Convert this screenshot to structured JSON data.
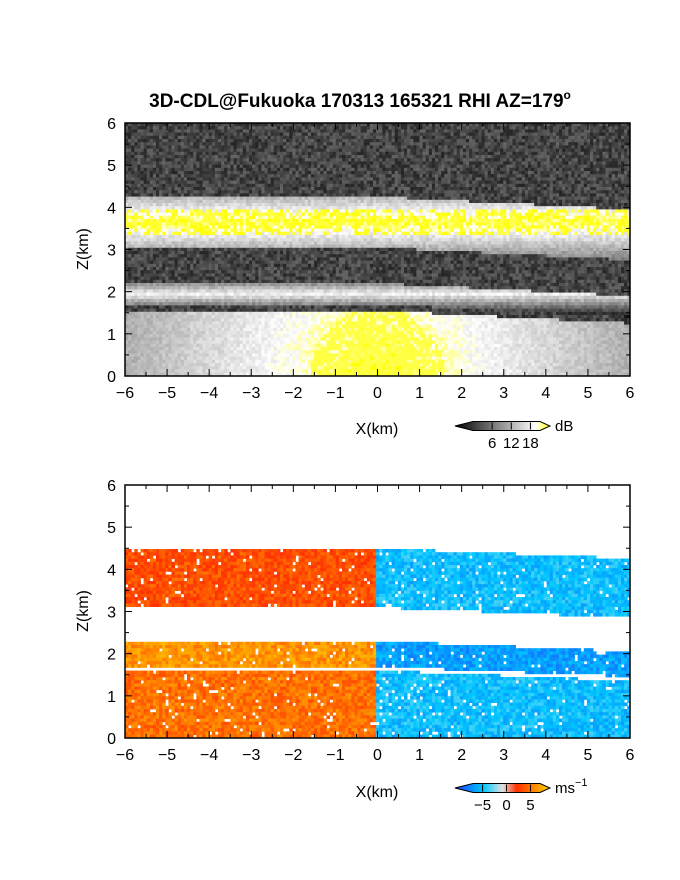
{
  "title": "3D-CDL@Fukuoka 170313 165321 RHI AZ=179",
  "title_superscript": "o",
  "chart_data": [
    {
      "type": "heatmap",
      "quantity": "backscatter intensity",
      "xlabel": "X(km)",
      "ylabel": "Z(km)",
      "xlim": [
        -6,
        6
      ],
      "ylim": [
        0,
        6
      ],
      "xticks": [
        "-6",
        "-5",
        "-4",
        "-3",
        "-2",
        "-1",
        "0",
        "1",
        "2",
        "3",
        "4",
        "5",
        "6"
      ],
      "yticks": [
        "0",
        "1",
        "2",
        "3",
        "4",
        "5",
        "6"
      ],
      "colorscale": [
        "#000000",
        "#ffffff",
        "#ffff00"
      ],
      "colorbar": {
        "ticks": [
          "6",
          "12",
          "18"
        ],
        "unit": "dB",
        "range": [
          0,
          21
        ]
      },
      "layers": [
        {
          "z_bottom": 3.05,
          "z_top": 4.25,
          "level": "bright",
          "peak_yellow": true
        },
        {
          "z_bottom": 1.7,
          "z_top": 2.2,
          "level": "medium"
        },
        {
          "z_bottom": 0.0,
          "z_top": 1.55,
          "level": "bright",
          "peak_yellow": true
        }
      ]
    },
    {
      "type": "heatmap",
      "quantity": "radial velocity",
      "xlabel": "X(km)",
      "ylabel": "Z(km)",
      "xlim": [
        -6,
        6
      ],
      "ylim": [
        0,
        6
      ],
      "xticks": [
        "-6",
        "-5",
        "-4",
        "-3",
        "-2",
        "-1",
        "0",
        "1",
        "2",
        "3",
        "4",
        "5",
        "6"
      ],
      "yticks": [
        "0",
        "1",
        "2",
        "3",
        "4",
        "5",
        "6"
      ],
      "colorscale": [
        "#1a3cff",
        "#00c8ff",
        "#ffffff",
        "#ff3000",
        "#ffd800"
      ],
      "colorbar": {
        "ticks": [
          "−5",
          "0",
          "5"
        ],
        "unit": "ms",
        "unit_superscript": "−1",
        "range": [
          -7,
          7
        ]
      },
      "layers": [
        {
          "z_bottom": 3.1,
          "z_top": 4.5,
          "left_velocity": 3,
          "right_velocity": -3
        },
        {
          "z_bottom": 1.7,
          "z_top": 2.3,
          "left_velocity": 5,
          "right_velocity": -4
        },
        {
          "z_bottom": 0.0,
          "z_top": 1.6,
          "left_velocity": 4,
          "right_velocity": -3
        }
      ]
    }
  ]
}
